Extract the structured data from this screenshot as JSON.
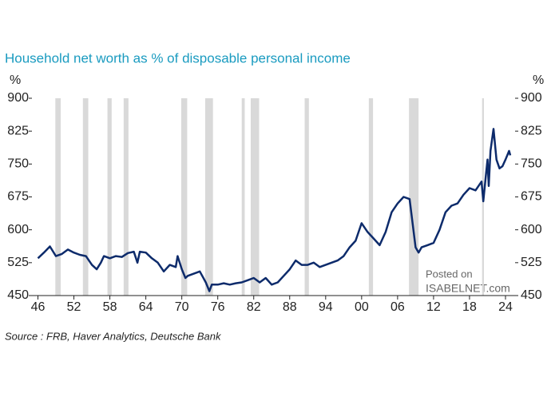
{
  "chart_data": {
    "type": "line",
    "title": "Household net worth as % of disposable personal income",
    "y_unit": "%",
    "y2_unit": "%",
    "source": "Source : FRB, Haver Analytics, Deutsche Bank",
    "watermark": [
      "Posted on",
      "ISABELNET.com"
    ],
    "xlim": [
      1945,
      2025.6
    ],
    "xticks": [
      {
        "value": 1946,
        "label": "46"
      },
      {
        "value": 1952,
        "label": "52"
      },
      {
        "value": 1958,
        "label": "58"
      },
      {
        "value": 1964,
        "label": "64"
      },
      {
        "value": 1970,
        "label": "70"
      },
      {
        "value": 1976,
        "label": "76"
      },
      {
        "value": 1982,
        "label": "82"
      },
      {
        "value": 1988,
        "label": "88"
      },
      {
        "value": 1994,
        "label": "94"
      },
      {
        "value": 2000,
        "label": "00"
      },
      {
        "value": 2006,
        "label": "06"
      },
      {
        "value": 2012,
        "label": "12"
      },
      {
        "value": 2018,
        "label": "18"
      },
      {
        "value": 2024,
        "label": "24"
      }
    ],
    "ylim": [
      450,
      900
    ],
    "yticks": [
      450,
      525,
      600,
      675,
      750,
      825,
      900
    ],
    "y2lim": [
      450,
      900
    ],
    "y2ticks": [
      450,
      525,
      600,
      675,
      750,
      825,
      900
    ],
    "recession_color": "#d9d9d9",
    "recessions": [
      [
        1948.9,
        1949.8
      ],
      [
        1953.5,
        1954.4
      ],
      [
        1957.6,
        1958.3
      ],
      [
        1960.3,
        1961.1
      ],
      [
        1969.9,
        1970.9
      ],
      [
        1973.9,
        1975.2
      ],
      [
        1980.0,
        1980.5
      ],
      [
        1981.5,
        1982.9
      ],
      [
        1990.5,
        1991.2
      ],
      [
        2001.2,
        2001.9
      ],
      [
        2007.9,
        2009.5
      ],
      [
        2020.1,
        2020.4
      ]
    ],
    "x": [
      1946,
      1947,
      1948,
      1949,
      1950,
      1951,
      1952,
      1953,
      1954,
      1955,
      1955.8,
      1956.5,
      1957,
      1958,
      1959,
      1960,
      1961,
      1962,
      1962.6,
      1963,
      1964,
      1965,
      1966,
      1967,
      1968,
      1969,
      1969.3,
      1970,
      1970.6,
      1971,
      1972,
      1973,
      1974,
      1974.6,
      1975,
      1976,
      1977,
      1978,
      1979,
      1980,
      1981,
      1982,
      1983,
      1984,
      1985,
      1986,
      1987,
      1988,
      1989,
      1990,
      1991,
      1992,
      1993,
      1994,
      1995,
      1996,
      1997,
      1998,
      1999,
      2000,
      2001,
      2002,
      2003,
      2004,
      2005,
      2006,
      2007,
      2008,
      2009,
      2009.5,
      2010,
      2011,
      2012,
      2013,
      2014,
      2015,
      2016,
      2017,
      2018,
      2019,
      2020,
      2020.3,
      2020.7,
      2021,
      2021.2,
      2021.5,
      2022,
      2022.5,
      2023,
      2023.5,
      2024,
      2024.6,
      2024.8
    ],
    "series": [
      {
        "name": "Household net worth",
        "color": "#0d2b6b",
        "values": [
          535,
          548,
          562,
          540,
          545,
          555,
          548,
          543,
          540,
          520,
          510,
          525,
          540,
          535,
          540,
          538,
          547,
          550,
          525,
          550,
          548,
          535,
          525,
          505,
          520,
          515,
          540,
          510,
          490,
          495,
          500,
          505,
          480,
          460,
          475,
          475,
          478,
          475,
          478,
          480,
          485,
          490,
          480,
          490,
          475,
          480,
          495,
          510,
          530,
          520,
          520,
          525,
          515,
          520,
          525,
          530,
          540,
          560,
          575,
          615,
          595,
          580,
          565,
          595,
          640,
          660,
          675,
          670,
          560,
          548,
          560,
          565,
          570,
          600,
          640,
          655,
          660,
          680,
          695,
          690,
          710,
          665,
          720,
          760,
          700,
          780,
          830,
          760,
          740,
          745,
          760,
          780,
          770
        ]
      }
    ]
  }
}
